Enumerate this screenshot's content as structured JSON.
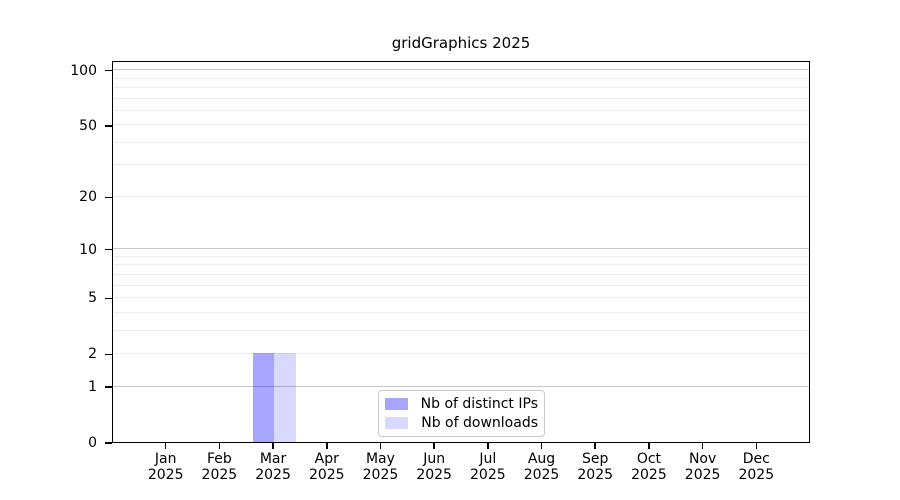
{
  "chart_data": {
    "type": "bar",
    "title": "gridGraphics 2025",
    "categories": [
      "Jan",
      "Feb",
      "Mar",
      "Apr",
      "May",
      "Jun",
      "Jul",
      "Aug",
      "Sep",
      "Oct",
      "Nov",
      "Dec"
    ],
    "category_year": "2025",
    "series": [
      {
        "name": "Nb of distinct IPs",
        "values": [
          0,
          0,
          2,
          0,
          0,
          0,
          0,
          0,
          0,
          0,
          0,
          0
        ],
        "bar_color": "rgba(0,0,255,0.35)",
        "swatch_color": "#A6A6FF"
      },
      {
        "name": "Nb of downloads",
        "values": [
          0,
          0,
          2,
          0,
          0,
          0,
          0,
          0,
          0,
          0,
          0,
          0
        ],
        "bar_color": "rgba(0,0,255,0.15)",
        "swatch_color": "#D9D9FF"
      }
    ],
    "yscale": "log1p",
    "ylim": [
      0,
      100
    ],
    "yticks": [
      0,
      1,
      2,
      5,
      10,
      20,
      50,
      100
    ],
    "grid": {
      "major_values": [
        1,
        10,
        100
      ],
      "minor_values": [
        2,
        3,
        4,
        5,
        6,
        7,
        8,
        9,
        20,
        30,
        40,
        50,
        60,
        70,
        80,
        90
      ],
      "major_color": "#c8c8c8",
      "minor_color": "#ededed"
    },
    "legend": {
      "position": "inside-bottom-center"
    },
    "axis_color": "#000000",
    "text_color": "#000000"
  }
}
